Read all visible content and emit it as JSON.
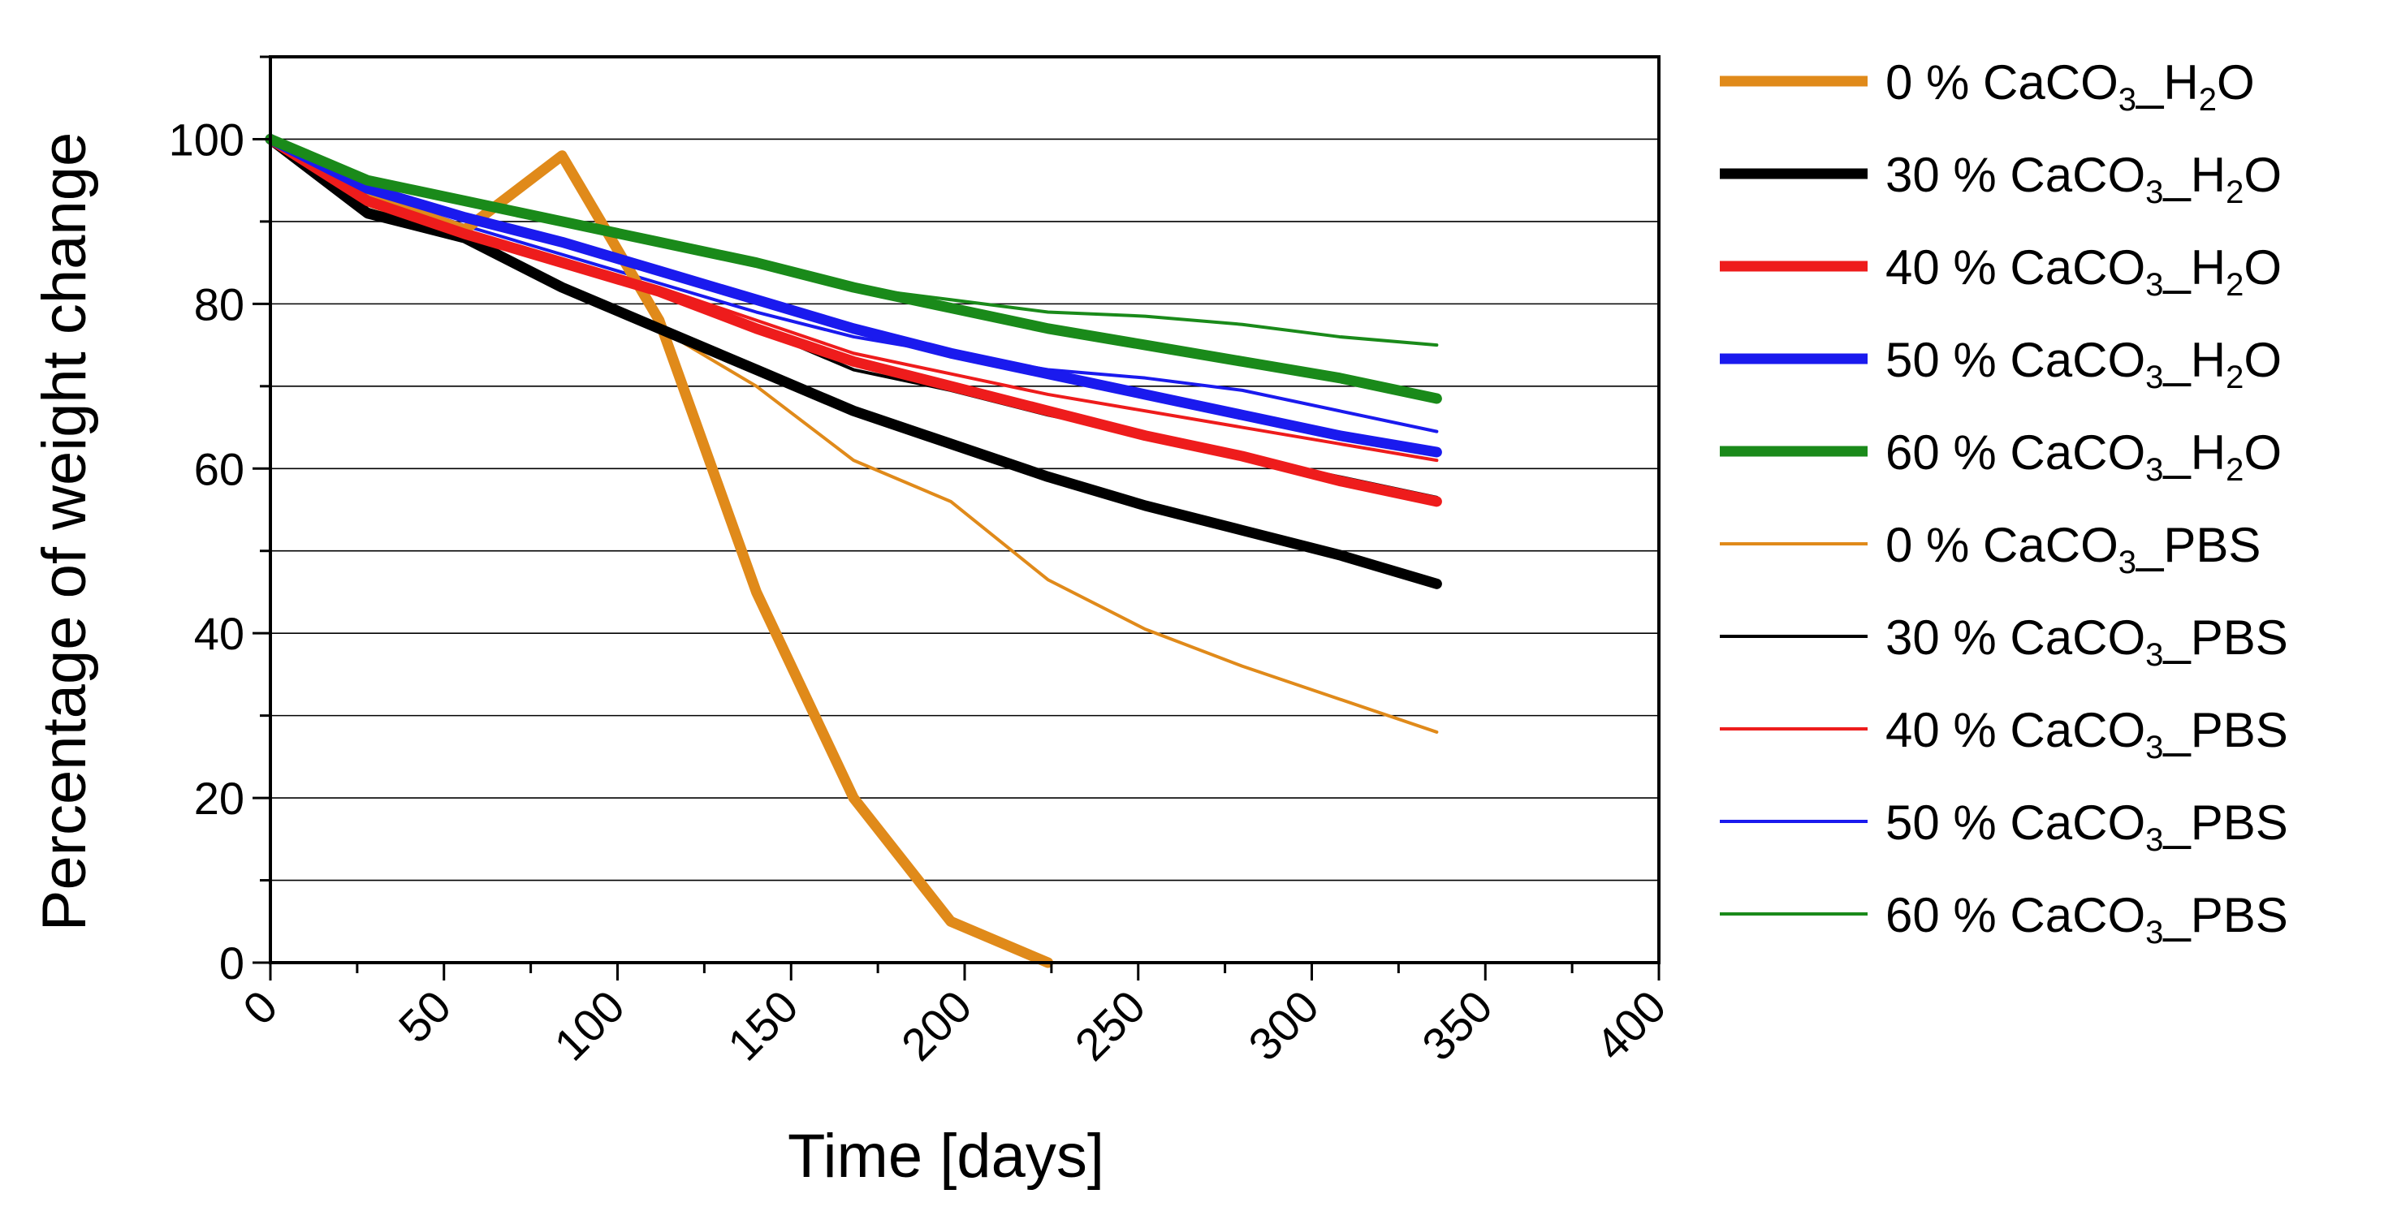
{
  "chart_data": {
    "type": "line",
    "title": "",
    "xlabel": "Time [days]",
    "ylabel": "Percentage of weight change",
    "xlim": [
      0,
      400
    ],
    "ylim": [
      0,
      110
    ],
    "xticks": [
      "0",
      "50",
      "100",
      "150",
      "200",
      "250",
      "300",
      "350",
      "400"
    ],
    "yticks": [
      "0",
      "20",
      "40",
      "60",
      "80",
      "100"
    ],
    "grid": "horizontal",
    "legend_position": "right",
    "series": [
      {
        "name": "0 % CaCO3_H2O",
        "pct": "0 %",
        "medium": "H2O",
        "color": "#e08a1a",
        "weight": "thick",
        "x": [
          0,
          28,
          56,
          84,
          112,
          140,
          168,
          196,
          224
        ],
        "y": [
          100,
          93,
          89,
          98,
          78,
          45,
          20,
          5,
          0
        ]
      },
      {
        "name": "30 % CaCO3_H2O",
        "pct": "30 %",
        "medium": "H2O",
        "color": "#000000",
        "weight": "thick",
        "x": [
          0,
          28,
          56,
          84,
          112,
          140,
          168,
          196,
          224,
          252,
          280,
          308,
          336
        ],
        "y": [
          100,
          91,
          88,
          82,
          77,
          72,
          67,
          63,
          59,
          55.5,
          52.5,
          49.5,
          46
        ]
      },
      {
        "name": "40 % CaCO3_H2O",
        "pct": "40 %",
        "medium": "H2O",
        "color": "#ee1c1c",
        "weight": "thick",
        "x": [
          0,
          28,
          56,
          84,
          112,
          140,
          168,
          196,
          224,
          252,
          280,
          308,
          336
        ],
        "y": [
          100,
          92.5,
          88.5,
          85,
          81.5,
          77,
          73,
          70,
          67,
          64,
          61.5,
          58.5,
          56
        ]
      },
      {
        "name": "50 % CaCO3_H2O",
        "pct": "50 %",
        "medium": "H2O",
        "color": "#1a1aee",
        "weight": "thick",
        "x": [
          0,
          28,
          56,
          84,
          112,
          140,
          168,
          196,
          224,
          252,
          280,
          308,
          336
        ],
        "y": [
          100,
          94,
          90.5,
          87.5,
          84,
          80.5,
          77,
          74,
          71.5,
          69,
          66.5,
          64,
          62
        ]
      },
      {
        "name": "60 % CaCO3_H2O",
        "pct": "60 %",
        "medium": "H2O",
        "color": "#1a8a1a",
        "weight": "thick",
        "x": [
          0,
          28,
          56,
          84,
          112,
          140,
          168,
          196,
          224,
          252,
          280,
          308,
          336
        ],
        "y": [
          100,
          95,
          92.5,
          90,
          87.5,
          85,
          82,
          79.5,
          77,
          75,
          73,
          71,
          68.5
        ]
      },
      {
        "name": "0 % CaCO3_PBS",
        "pct": "0 %",
        "medium": "PBS",
        "color": "#e08a1a",
        "weight": "thin",
        "x": [
          0,
          28,
          56,
          84,
          112,
          140,
          168,
          196,
          224,
          252,
          280,
          308,
          336
        ],
        "y": [
          100,
          92,
          88,
          82,
          77,
          70,
          61,
          56,
          46.5,
          40.5,
          36,
          32,
          28
        ]
      },
      {
        "name": "30 % CaCO3_PBS",
        "pct": "30 %",
        "medium": "PBS",
        "color": "#000000",
        "weight": "thin",
        "x": [
          0,
          28,
          56,
          84,
          112,
          140,
          168,
          196,
          224,
          252,
          280,
          308,
          336
        ],
        "y": [
          100,
          91.5,
          88,
          85,
          81.5,
          77,
          72,
          69.5,
          66.5,
          64,
          61.5,
          59,
          56.5
        ]
      },
      {
        "name": "40 % CaCO3_PBS",
        "pct": "40 %",
        "medium": "PBS",
        "color": "#ee1c1c",
        "weight": "thin",
        "x": [
          0,
          28,
          56,
          84,
          112,
          140,
          168,
          196,
          224,
          252,
          280,
          308,
          336
        ],
        "y": [
          100,
          93,
          89,
          85.5,
          82,
          78,
          74,
          71.5,
          69,
          67,
          65,
          63,
          61
        ]
      },
      {
        "name": "50 % CaCO3_PBS",
        "pct": "50 %",
        "medium": "PBS",
        "color": "#1a1aee",
        "weight": "thin",
        "x": [
          0,
          28,
          56,
          84,
          112,
          140,
          168,
          196,
          224,
          252,
          280,
          308,
          336
        ],
        "y": [
          100,
          93.5,
          89.5,
          86,
          82.5,
          79,
          76,
          74,
          72,
          71,
          69.5,
          67,
          64.5
        ]
      },
      {
        "name": "60 % CaCO3_PBS",
        "pct": "60 %",
        "medium": "PBS",
        "color": "#1a8a1a",
        "weight": "thin",
        "x": [
          0,
          28,
          56,
          84,
          112,
          140,
          168,
          196,
          224,
          252,
          280,
          308,
          336
        ],
        "y": [
          100,
          95,
          92.5,
          90,
          87.5,
          85,
          82,
          80.5,
          79,
          78.5,
          77.5,
          76,
          75
        ]
      }
    ]
  }
}
